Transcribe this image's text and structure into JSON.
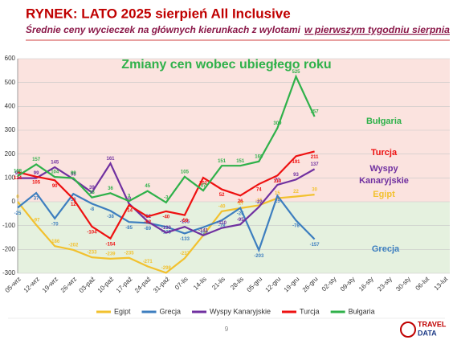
{
  "chart_data": {
    "type": "line",
    "title": "RYNEK: LATO 2025 sierpień All Inclusive",
    "subtitle": [
      "Średnie ceny wycieczek na głównych kierunkach z wylotami",
      "w pierwszym tygodniu sierpnia"
    ],
    "chart_title": "Zmiany cen wobec ubiegłego roku",
    "categories": [
      "05-wrz",
      "12-wrz",
      "19-wrz",
      "26-wrz",
      "03-paź",
      "10-paź",
      "17-paź",
      "24-paź",
      "31-paź",
      "07-lis",
      "14-lis",
      "21-lis",
      "28-lis",
      "05-gru",
      "12-gru",
      "19-gru",
      "26-gru",
      "02-sty",
      "09-sty",
      "16-sty",
      "23-sty",
      "30-sty",
      "06-lut",
      "13-lut"
    ],
    "ylim": [
      -300,
      600
    ],
    "yticks": [
      -300,
      -200,
      -100,
      0,
      100,
      200,
      300,
      400,
      500,
      600
    ],
    "grid": true,
    "series": [
      {
        "name": "Egipt",
        "color": "#f2c12e",
        "values": [
          0,
          -97,
          -186,
          -202,
          -233,
          -239,
          -235,
          -271,
          -298,
          -237,
          -141,
          -40,
          -27,
          -15,
          15,
          22,
          30,
          null,
          null,
          null,
          null,
          null,
          null,
          null
        ]
      },
      {
        "name": "Grecja",
        "color": "#3d7ebf",
        "values": [
          -25,
          37,
          -70,
          33,
          -8,
          -38,
          -85,
          -89,
          -105,
          -133,
          -107,
          -78,
          -26,
          -203,
          25,
          -78,
          -157,
          null,
          null,
          null,
          null,
          null,
          null,
          null
        ]
      },
      {
        "name": "Wyspy Kanaryjskie",
        "color": "#7030a0",
        "values": [
          99,
          99,
          145,
          95,
          39,
          161,
          -8,
          -82,
          -130,
          -105,
          -141,
          -110,
          -95,
          -22,
          71,
          93,
          137,
          null,
          null,
          null,
          null,
          null,
          null,
          null
        ]
      },
      {
        "name": "Turcja",
        "color": "#ee1111",
        "values": [
          124,
          105,
          90,
          12,
          -104,
          -154,
          -14,
          -62,
          -40,
          -56,
          101,
          52,
          26,
          74,
          110,
          191,
          211,
          null,
          null,
          null,
          null,
          null,
          null,
          null
        ]
      },
      {
        "name": "Bułgaria",
        "color": "#2fb14a",
        "values": [
          108,
          157,
          104,
          99,
          18,
          36,
          3,
          45,
          -3,
          105,
          47,
          151,
          151,
          169,
          309,
          525,
          357,
          null,
          null,
          null,
          null,
          null,
          null,
          null
        ]
      }
    ],
    "annotations": [
      "Bułgaria",
      "Turcja",
      "Wyspy",
      "Kanaryjskie",
      "Egipt",
      "Grecja"
    ],
    "page_number": "9",
    "logo": [
      "TRAVEL",
      "DATA"
    ]
  }
}
